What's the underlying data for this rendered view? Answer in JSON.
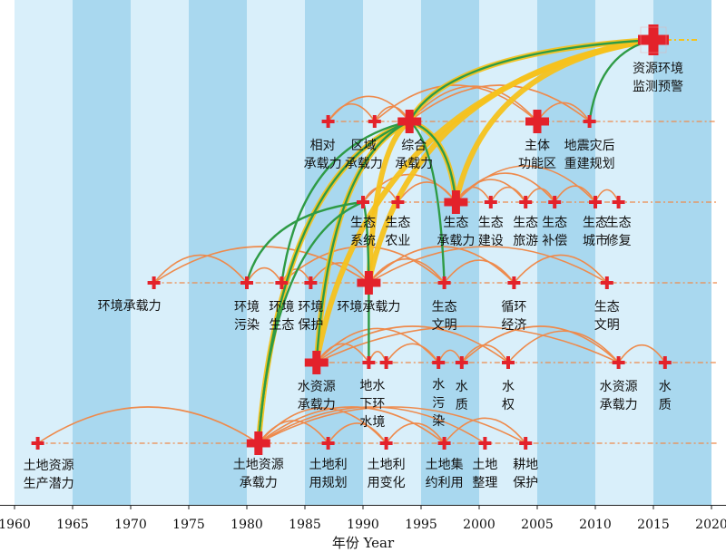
{
  "chart_data": {
    "type": "timeline-network",
    "x_axis": {
      "title": "年份 Year",
      "range": [
        1960,
        2020
      ],
      "ticks": [
        "1960",
        "1965",
        "1970",
        "1975",
        "1980",
        "1985",
        "1990",
        "1995",
        "2000",
        "2005",
        "2010",
        "2015",
        "2020"
      ]
    },
    "colors": {
      "band_dark": "#a9d8ef",
      "band_light": "#d9effa",
      "node": "#e3222b",
      "orange_link": "#ee8a4c",
      "green_link": "#2e9b45",
      "yellow_link": "#f6c21c",
      "baseline": "#ee8a4c"
    },
    "levels": [
      {
        "id": "level5",
        "nodes": [
          {
            "id": "zyhjjc",
            "year": 2015,
            "major": true,
            "label": [
              "资源环境",
              "监测预警"
            ]
          }
        ]
      },
      {
        "id": "level4",
        "nodes": [
          {
            "id": "xdcz",
            "year": 1987,
            "label": [
              "相对",
              "承载力"
            ]
          },
          {
            "id": "qycz",
            "year": 1991,
            "label": [
              "区域",
              "承载力"
            ]
          },
          {
            "id": "zhcz",
            "year": 1994,
            "major": true,
            "label": [
              "综合",
              "承载力"
            ]
          },
          {
            "id": "ztgn",
            "year": 2005,
            "major": true,
            "label": [
              "主体",
              "功能区"
            ]
          },
          {
            "id": "dzzh",
            "year": 2009.5,
            "label": [
              "地震灾后",
              "重建规划"
            ]
          }
        ]
      },
      {
        "id": "level3",
        "nodes": [
          {
            "id": "stxt",
            "year": 1990,
            "label": [
              "生态",
              "系统"
            ]
          },
          {
            "id": "stny",
            "year": 1993,
            "label": [
              "生态",
              "农业"
            ]
          },
          {
            "id": "stcz",
            "year": 1998,
            "major": true,
            "label": [
              "生态",
              "承载力"
            ]
          },
          {
            "id": "stjs",
            "year": 2001,
            "label": [
              "生态",
              "建设"
            ]
          },
          {
            "id": "stly",
            "year": 2004,
            "label": [
              "生态",
              "旅游"
            ]
          },
          {
            "id": "stbc",
            "year": 2006.5,
            "label": [
              "生态",
              "补偿"
            ]
          },
          {
            "id": "stcs",
            "year": 2010,
            "label": [
              "生态",
              "城市"
            ]
          },
          {
            "id": "stxf",
            "year": 2012,
            "label": [
              "生态",
              "修复"
            ]
          }
        ]
      },
      {
        "id": "level2",
        "nodes": [
          {
            "id": "hjcz1",
            "year": 1972,
            "label": [
              "环境承载力"
            ]
          },
          {
            "id": "hjwr",
            "year": 1980,
            "label": [
              "环境",
              "污染"
            ]
          },
          {
            "id": "hjst",
            "year": 1983,
            "label": [
              "环境",
              "生态"
            ]
          },
          {
            "id": "hjbh",
            "year": 1985.5,
            "label": [
              "环境",
              "保护"
            ]
          },
          {
            "id": "hjcz2",
            "year": 1990.5,
            "major": true,
            "label": [
              "环境承载力"
            ]
          },
          {
            "id": "stwm1",
            "year": 1997,
            "label": [
              "生态",
              "文明"
            ]
          },
          {
            "id": "xhjj",
            "year": 2003,
            "label": [
              "循环",
              "经济"
            ]
          },
          {
            "id": "stwm2",
            "year": 2011,
            "label": [
              "生态",
              "文明"
            ]
          }
        ]
      },
      {
        "id": "level1",
        "nodes": [
          {
            "id": "szycz1",
            "year": 1986,
            "major": true,
            "label": [
              "水资源",
              "承载力"
            ]
          },
          {
            "id": "dxshj",
            "year": 1990.5,
            "label": [
              "地水",
              "下环",
              "水境"
            ]
          },
          {
            "id": "dxshj2",
            "year": 1992,
            "label": []
          },
          {
            "id": "swr",
            "year": 1996.5,
            "label": [
              "水",
              "污",
              "染"
            ]
          },
          {
            "id": "szl",
            "year": 1998.5,
            "label": [
              "水",
              "质"
            ]
          },
          {
            "id": "sq",
            "year": 2002.5,
            "label": [
              "水",
              "权"
            ]
          },
          {
            "id": "szycz2",
            "year": 2012,
            "label": [
              "水资源",
              "承载力"
            ]
          },
          {
            "id": "szl2",
            "year": 2016,
            "label": [
              "水",
              "质"
            ]
          }
        ]
      },
      {
        "id": "level0",
        "nodes": [
          {
            "id": "tdzy1",
            "year": 1962,
            "label": [
              "土地资源",
              "生产潜力"
            ]
          },
          {
            "id": "tdzycz",
            "year": 1981,
            "major": true,
            "label": [
              "土地资源",
              "承载力"
            ]
          },
          {
            "id": "tdlygh",
            "year": 1987,
            "label": [
              "土地利",
              "用规划"
            ]
          },
          {
            "id": "tdlybh",
            "year": 1992,
            "label": [
              "土地利",
              "用变化"
            ]
          },
          {
            "id": "tdjy",
            "year": 1997,
            "label": [
              "土地集",
              "约利用"
            ]
          },
          {
            "id": "tdzl",
            "year": 2000.5,
            "label": [
              "土地",
              "整理"
            ]
          },
          {
            "id": "gdbh",
            "year": 2004,
            "label": [
              "耕地",
              "保护"
            ]
          }
        ]
      }
    ],
    "orange_links": [
      [
        "tdzy1",
        "tdzycz"
      ],
      [
        "tdzycz",
        "tdlygh"
      ],
      [
        "tdzycz",
        "tdlybh"
      ],
      [
        "tdzycz",
        "tdjy"
      ],
      [
        "tdzycz",
        "tdzl"
      ],
      [
        "tdzycz",
        "gdbh"
      ],
      [
        "tdlygh",
        "tdlybh"
      ],
      [
        "tdlybh",
        "tdjy"
      ],
      [
        "tdjy",
        "gdbh"
      ],
      [
        "szycz1",
        "dxshj"
      ],
      [
        "szycz1",
        "swr"
      ],
      [
        "szycz1",
        "sq"
      ],
      [
        "szycz1",
        "szycz2"
      ],
      [
        "dxshj",
        "dxshj2"
      ],
      [
        "dxshj2",
        "swr"
      ],
      [
        "swr",
        "szl"
      ],
      [
        "szl",
        "sq"
      ],
      [
        "sq",
        "szycz2"
      ],
      [
        "szycz2",
        "szl2"
      ],
      [
        "szl",
        "szycz2"
      ],
      [
        "hjcz1",
        "hjwr"
      ],
      [
        "hjcz1",
        "hjcz2"
      ],
      [
        "hjwr",
        "hjst"
      ],
      [
        "hjst",
        "hjbh"
      ],
      [
        "hjbh",
        "hjcz2"
      ],
      [
        "hjcz2",
        "stwm1"
      ],
      [
        "hjcz2",
        "xhjj"
      ],
      [
        "hjcz2",
        "stwm2"
      ],
      [
        "stwm1",
        "xhjj"
      ],
      [
        "xhjj",
        "stwm2"
      ],
      [
        "hjst",
        "stwm1"
      ],
      [
        "stxt",
        "stny"
      ],
      [
        "stxt",
        "stcz"
      ],
      [
        "stny",
        "stcz"
      ],
      [
        "stcz",
        "stjs"
      ],
      [
        "stcz",
        "stly"
      ],
      [
        "stcz",
        "stbc"
      ],
      [
        "stjs",
        "stly"
      ],
      [
        "stly",
        "stbc"
      ],
      [
        "stbc",
        "stcs"
      ],
      [
        "stcs",
        "stxf"
      ],
      [
        "stcz",
        "stcs"
      ],
      [
        "xdcz",
        "zhcz"
      ],
      [
        "qycz",
        "zhcz"
      ],
      [
        "zhcz",
        "ztgn"
      ],
      [
        "zhcz",
        "dzzh"
      ],
      [
        "xdcz",
        "qycz"
      ],
      [
        "ztgn",
        "dzzh"
      ],
      [
        "qycz",
        "ztgn"
      ]
    ],
    "green_links": [
      [
        "tdzycz",
        "zhcz"
      ],
      [
        "tdzycz",
        "stxt"
      ],
      [
        "hjst",
        "zhcz"
      ],
      [
        "hjcz2",
        "stxt"
      ],
      [
        "szycz1",
        "zhcz"
      ],
      [
        "dxshj",
        "hjcz2"
      ],
      [
        "stcz",
        "zhcz"
      ],
      [
        "stwm1",
        "zhcz"
      ],
      [
        "zhcz",
        "zyhjjc"
      ],
      [
        "dzzh",
        "zyhjjc"
      ],
      [
        "hjwr",
        "stxt"
      ]
    ],
    "yellow_links": [
      [
        "tdzycz",
        "zhcz"
      ],
      [
        "szycz1",
        "zhcz"
      ],
      [
        "hjcz2",
        "zhcz"
      ],
      [
        "stcz",
        "zhcz"
      ],
      [
        "zhcz",
        "zyhjjc"
      ],
      [
        "hjcz2",
        "zyhjjc"
      ],
      [
        "szycz1",
        "zyhjjc"
      ],
      [
        "stcz",
        "zyhjjc"
      ]
    ]
  }
}
